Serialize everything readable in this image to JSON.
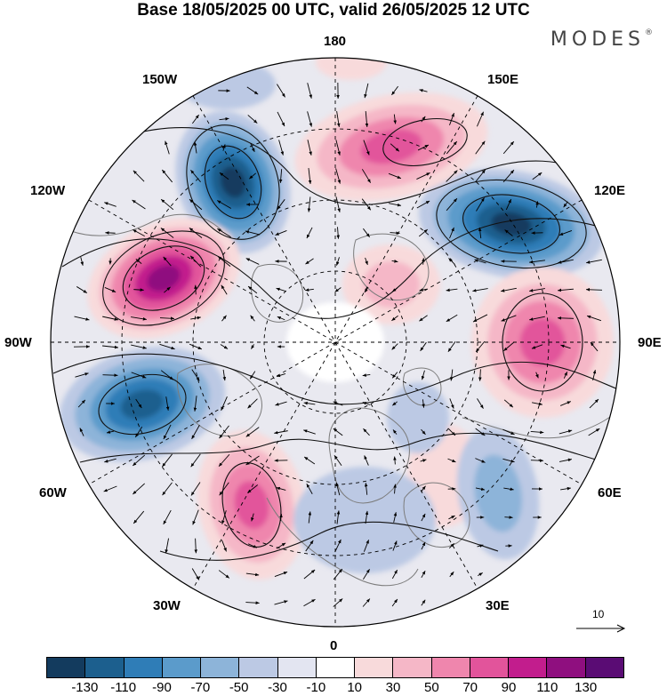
{
  "title": "Base 18/05/2025 00 UTC, valid 26/05/2025 12 UTC",
  "brand": "MODES",
  "brand_mark": "®",
  "longitude_labels": {
    "top": "180",
    "bottom": "0",
    "left": "90W",
    "right": "90E",
    "upper_left": "150W",
    "upper_right": "150E",
    "mid_upper_left": "120W",
    "mid_upper_right": "120E",
    "mid_lower_left": "60W",
    "mid_lower_right": "60E",
    "lower_left": "30W",
    "lower_right": "30E"
  },
  "reference_vector": {
    "label": "10"
  },
  "colorbar": {
    "ticks": [
      "-130",
      "-110",
      "-90",
      "-70",
      "-50",
      "-30",
      "-10",
      "10",
      "30",
      "50",
      "70",
      "90",
      "110",
      "130"
    ],
    "colors": [
      "#133b5e",
      "#1c5f8e",
      "#2f7db7",
      "#5b9bcb",
      "#8db4d9",
      "#bcc9e4",
      "#e3e5f1",
      "#ffffff",
      "#f8dadb",
      "#f5b7c7",
      "#ef86ad",
      "#e2549b",
      "#c21d8d",
      "#8f0f7f",
      "#5a0c74"
    ]
  },
  "colors": {
    "land": "#7b7b7b",
    "grid": "#000000"
  }
}
